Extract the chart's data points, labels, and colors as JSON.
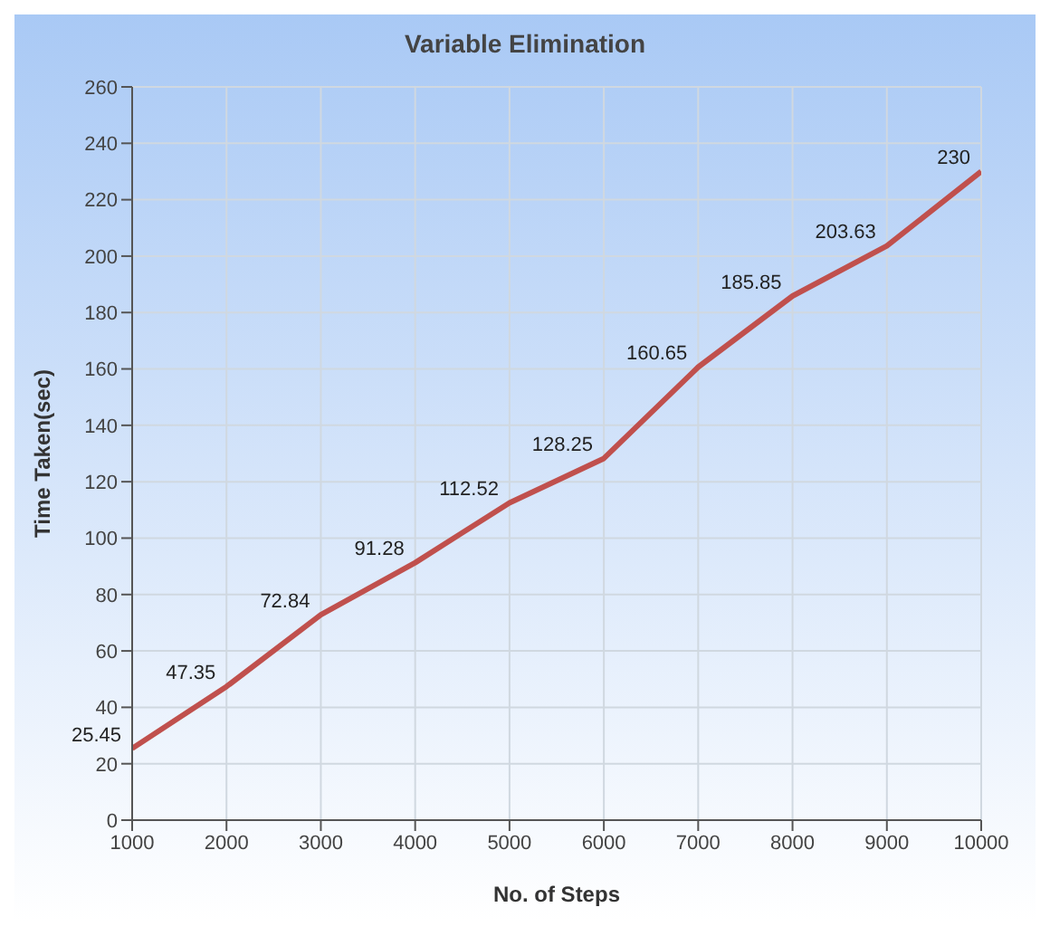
{
  "chart_data": {
    "type": "line",
    "title": "Variable Elimination",
    "xlabel": "No. of Steps",
    "ylabel": "Time Taken(sec)",
    "x": [
      1000,
      2000,
      3000,
      4000,
      5000,
      6000,
      7000,
      8000,
      9000,
      10000
    ],
    "series": [
      {
        "color": "#c0504d",
        "values": [
          25.45,
          47.35,
          72.84,
          91.28,
          112.52,
          128.25,
          160.65,
          185.85,
          203.63,
          230
        ]
      }
    ],
    "xlim": [
      1000,
      10000
    ],
    "xticks": [
      1000,
      2000,
      3000,
      4000,
      5000,
      6000,
      7000,
      8000,
      9000,
      10000
    ],
    "ylim": [
      0,
      260
    ],
    "yticks": [
      0,
      20,
      40,
      60,
      80,
      100,
      120,
      140,
      160,
      180,
      200,
      220,
      240,
      260
    ],
    "grid": true,
    "data_labels": true,
    "marker": "none",
    "line_style": "solid"
  }
}
